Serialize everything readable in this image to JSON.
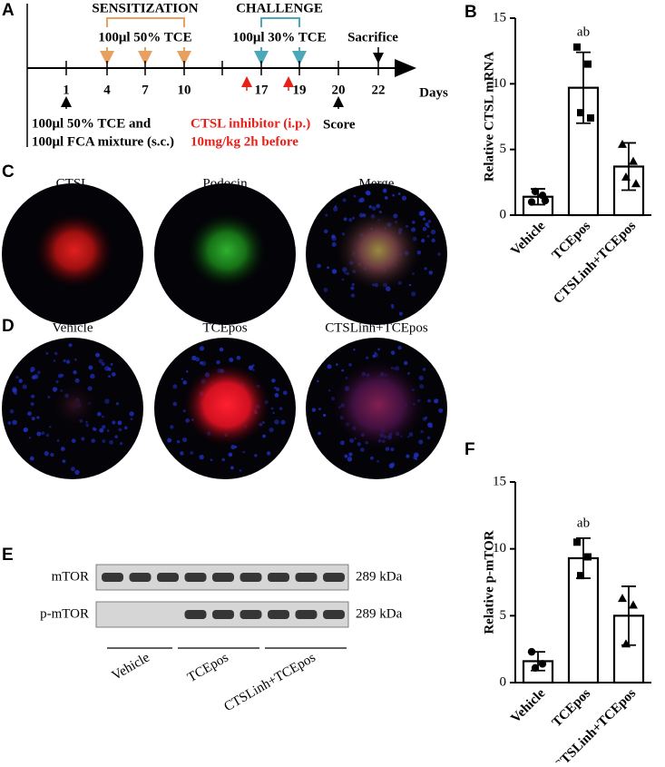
{
  "panel_labels": [
    "A",
    "B",
    "C",
    "D",
    "E",
    "F"
  ],
  "timeline": {
    "days": [
      "1",
      "4",
      "7",
      "10",
      "17",
      "19",
      "20",
      "22"
    ],
    "axis_label": "Days",
    "sensitization": {
      "title": "SENSITIZATION",
      "dose": "100μl 50% TCE"
    },
    "challenge": {
      "title": "CHALLENGE",
      "dose": "100μl 30% TCE"
    },
    "sacrifice": "Sacrifice",
    "initial": [
      "100μl 50% TCE and",
      "100μl FCA mixture (s.c.)"
    ],
    "inhibitor": [
      "CTSL inhibitor (i.p.)",
      "10mg/kg 2h before"
    ],
    "score": "Score"
  },
  "staining": {
    "titles": [
      "CTSL",
      "Podocin",
      "Merge"
    ]
  },
  "treatment": {
    "titles": [
      "Vehicle",
      "TCEpos",
      "CTSLinh+TCEpos"
    ]
  },
  "blot": {
    "rows": [
      {
        "name": "mTOR",
        "size": "289 kDa"
      },
      {
        "name": "p-mTOR",
        "size": "289 kDa"
      }
    ],
    "groups": [
      "Vehicle",
      "TCEpos",
      "CTSLinh+TCEpos"
    ]
  },
  "chart_data": [
    {
      "type": "bar",
      "y_label": "Relative CTSL mRNA",
      "categories": [
        "Vehicle",
        "TCEpos",
        "CTSLinh+TCEpos"
      ],
      "values": [
        1.4,
        9.7,
        3.7
      ],
      "errors": [
        0.6,
        2.7,
        1.8
      ],
      "points": [
        [
          1.0,
          1.5,
          1.8,
          1.1
        ],
        [
          12.8,
          11.5,
          7.8,
          7.4
        ],
        [
          5.4,
          4.1,
          2.9,
          2.4
        ]
      ],
      "markers": [
        "circle",
        "square",
        "triangle"
      ],
      "annotations": [
        null,
        "ab",
        null
      ],
      "ylim": [
        0,
        15
      ],
      "yticks": [
        0,
        5,
        10,
        15
      ],
      "color": "#000000"
    },
    {
      "type": "bar",
      "y_label": "Relative p-mTOR",
      "categories": [
        "Vehicle",
        "TCEpos",
        "CTSLinh+TCEpos"
      ],
      "values": [
        1.6,
        9.3,
        5.0
      ],
      "errors": [
        0.7,
        1.5,
        2.2
      ],
      "points": [
        [
          2.3,
          1.4,
          1.1
        ],
        [
          10.5,
          9.4,
          8.0
        ],
        [
          6.3,
          5.8,
          2.9
        ]
      ],
      "markers": [
        "circle",
        "square",
        "triangle"
      ],
      "annotations": [
        null,
        "ab",
        null
      ],
      "ylim": [
        0,
        15
      ],
      "yticks": [
        0,
        5,
        10,
        15
      ],
      "color": "#000000"
    }
  ]
}
